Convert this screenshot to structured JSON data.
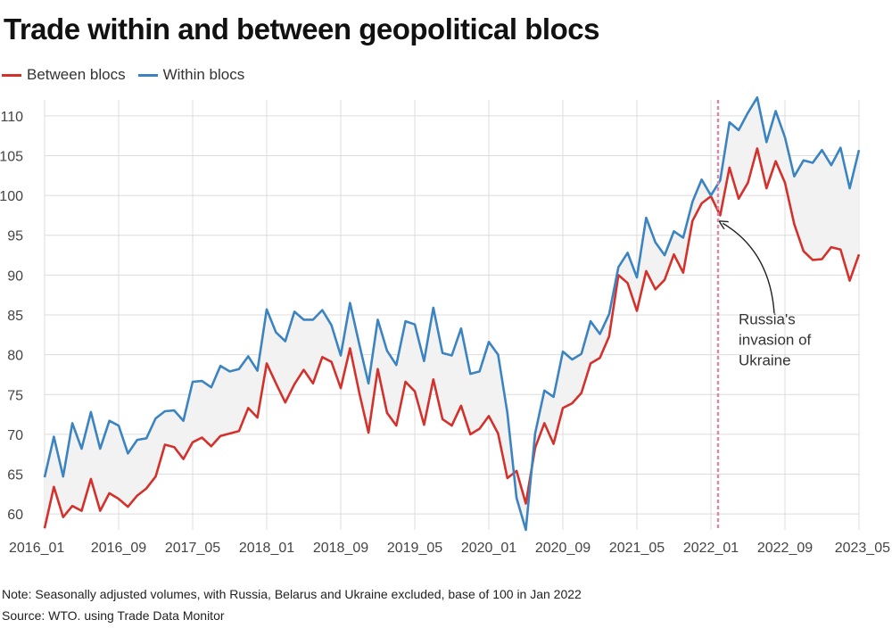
{
  "title": "Trade within and between geopolitical blocs",
  "note": "Note: Seasonally adjusted volumes, with Russia, Belarus and Ukraine excluded, base of 100 in Jan 2022",
  "source": "Source: WTO. using Trade Data Monitor",
  "chart_data": {
    "type": "line",
    "x_ticks": [
      "2016_01",
      "2016_09",
      "2017_05",
      "2018_01",
      "2018_09",
      "2019_05",
      "2020_01",
      "2020_09",
      "2021_05",
      "2022_01",
      "2022_09",
      "2023_05"
    ],
    "y_ticks": [
      60,
      65,
      70,
      75,
      80,
      85,
      90,
      95,
      100,
      105,
      110
    ],
    "ylim": [
      58,
      112
    ],
    "x_range": [
      "2016_01",
      "2023_05"
    ],
    "grid": true,
    "legend_position": "top-left",
    "series": [
      {
        "name": "Between blocs",
        "color": "#d3322c",
        "values": [
          58.2,
          63.4,
          59.6,
          61.0,
          60.4,
          64.4,
          60.4,
          62.6,
          61.9,
          60.9,
          62.3,
          63.2,
          64.7,
          68.7,
          68.4,
          66.9,
          69.0,
          69.6,
          68.5,
          69.8,
          70.1,
          70.4,
          73.3,
          72.1,
          78.9,
          76.4,
          74.0,
          76.3,
          78.1,
          76.4,
          79.7,
          79.1,
          75.8,
          80.8,
          75.2,
          70.2,
          78.2,
          72.7,
          71.1,
          76.6,
          75.4,
          71.2,
          76.9,
          71.9,
          71.1,
          73.6,
          70.0,
          70.7,
          72.3,
          70.1,
          64.5,
          65.4,
          61.3,
          68.3,
          71.4,
          68.8,
          73.3,
          73.9,
          75.2,
          78.9,
          79.6,
          82.3,
          90.0,
          89.0,
          85.5,
          90.5,
          88.2,
          89.4,
          92.6,
          90.3,
          96.8,
          99.0,
          99.9,
          97.5,
          103.5,
          99.6,
          101.6,
          105.9,
          100.9,
          104.3,
          101.6,
          96.4,
          93.0,
          91.9,
          92.0,
          93.5,
          93.2,
          89.3,
          92.6
        ],
        "annotation": "Russia's invasion of Ukraine",
        "annotation_lines": [
          "Russia's",
          "invasion of",
          "Ukraine"
        ]
      },
      {
        "name": "Within blocs",
        "color": "#3b84c1",
        "values": [
          64.6,
          69.7,
          64.7,
          71.4,
          68.2,
          72.8,
          68.2,
          71.7,
          71.1,
          67.6,
          69.3,
          69.5,
          72.0,
          72.9,
          73.0,
          71.7,
          76.6,
          76.7,
          75.9,
          78.6,
          77.9,
          78.2,
          79.8,
          78.0,
          85.7,
          82.8,
          81.7,
          85.4,
          84.4,
          84.4,
          85.6,
          83.7,
          79.9,
          86.5,
          81.3,
          76.4,
          84.4,
          80.5,
          78.7,
          84.2,
          83.8,
          79.2,
          85.9,
          80.2,
          79.9,
          83.3,
          77.6,
          77.9,
          81.6,
          80.0,
          72.7,
          62.0,
          58.0,
          70.1,
          75.5,
          74.7,
          80.4,
          79.4,
          80.1,
          84.2,
          82.6,
          85.1,
          91.0,
          92.8,
          89.7,
          97.2,
          94.1,
          92.5,
          95.5,
          94.7,
          99.2,
          102.0,
          100.0,
          101.9,
          109.2,
          108.2,
          110.4,
          112.3,
          106.7,
          110.6,
          107.3,
          102.4,
          104.4,
          104.1,
          105.7,
          103.8,
          106.0,
          100.9,
          105.7
        ]
      }
    ]
  }
}
